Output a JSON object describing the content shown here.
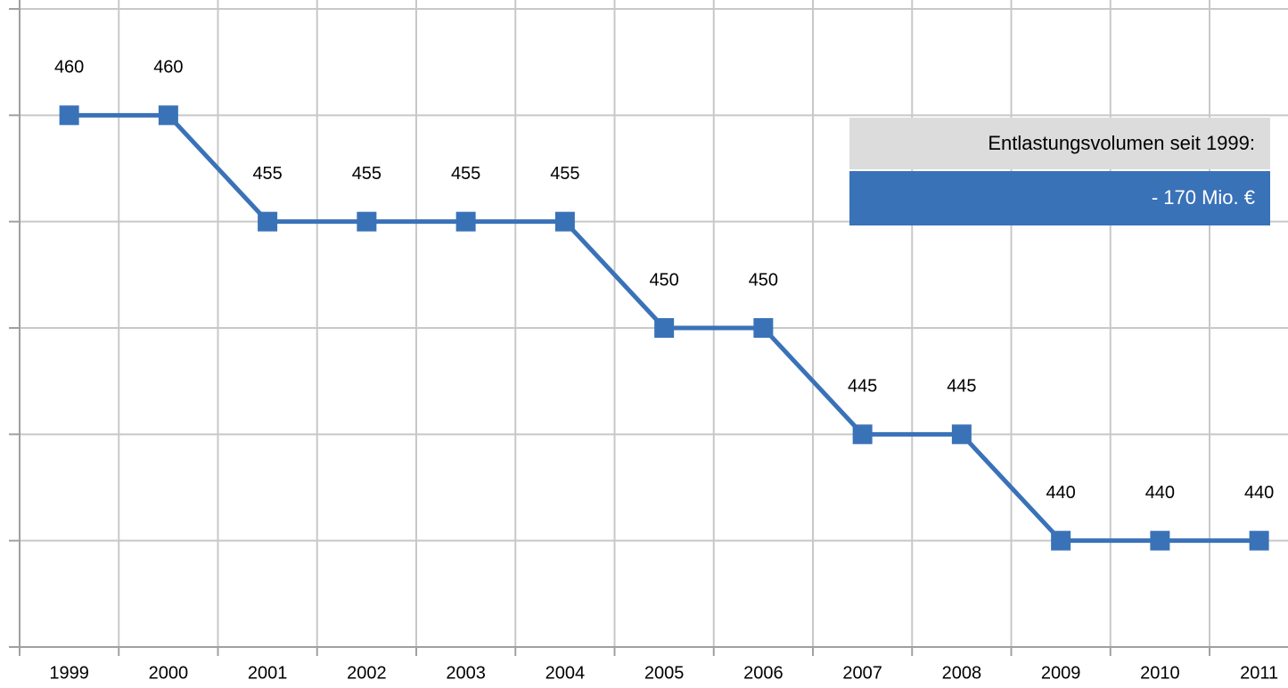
{
  "chart_data": {
    "type": "line",
    "categories": [
      "1999",
      "2000",
      "2001",
      "2002",
      "2003",
      "2004",
      "2005",
      "2006",
      "2007",
      "2008",
      "2009",
      "2010",
      "2011"
    ],
    "series": [
      {
        "values": [
          460,
          460,
          455,
          455,
          455,
          455,
          450,
          450,
          445,
          445,
          440,
          440,
          440
        ],
        "color": "#3a72b8"
      }
    ],
    "ylim": [
      435,
      465
    ],
    "yticks": [
      435,
      440,
      445,
      450,
      455,
      460,
      465
    ],
    "grid": true,
    "annotation": {
      "heading": "Entlastungsvolumen seit 1999:",
      "value": "- 170 Mio. €"
    }
  }
}
